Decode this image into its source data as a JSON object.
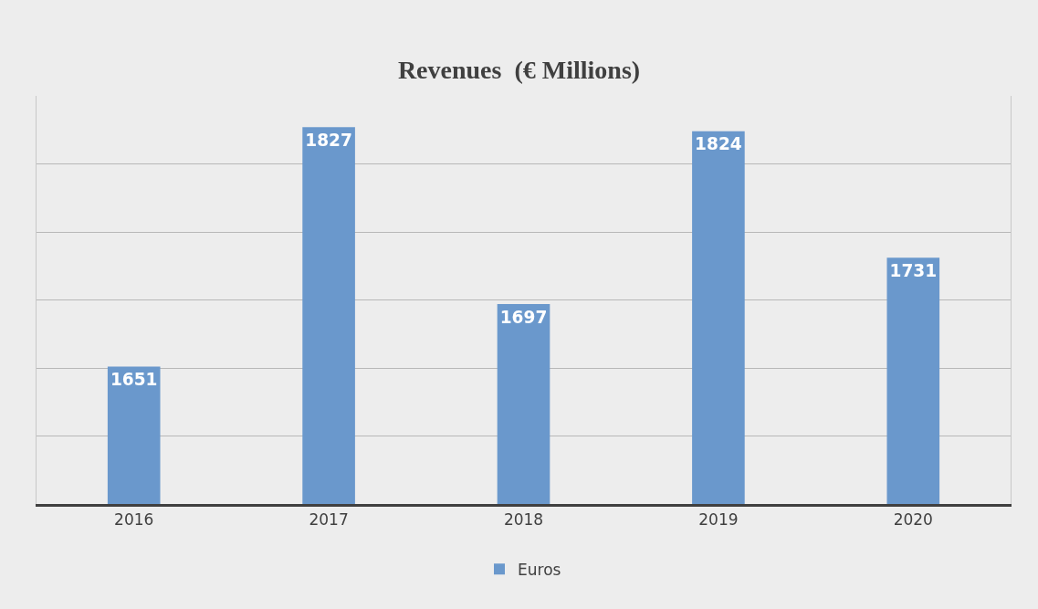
{
  "chart_data": {
    "type": "bar",
    "title": "Revenues  (€ Millions)",
    "categories": [
      "2016",
      "2017",
      "2018",
      "2019",
      "2020"
    ],
    "series": [
      {
        "name": "Euros",
        "color": "#6a98cc",
        "values": [
          1651,
          1827,
          1697,
          1824,
          1731
        ]
      }
    ],
    "data_labels": true,
    "ylim": [
      1550,
      1850
    ],
    "yticks": [
      {
        "value": 1550,
        "label": null
      },
      {
        "value": 1600,
        "label": null
      },
      {
        "value": 1650,
        "label": null
      },
      {
        "value": 1700,
        "label": null
      },
      {
        "value": 1750,
        "label": null
      },
      {
        "value": 1800,
        "label": null
      }
    ],
    "grid": "y",
    "legend": "bottom",
    "tick_labels": "x"
  }
}
